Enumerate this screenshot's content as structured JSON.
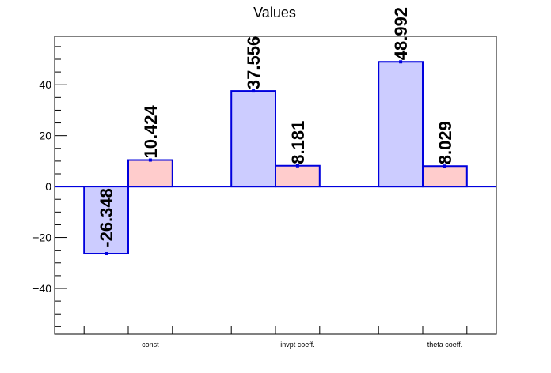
{
  "chart_data": {
    "type": "bar",
    "title": "Values",
    "categories": [
      "const",
      "invpt coeff.",
      "theta coeff."
    ],
    "series": [
      {
        "values": [
          -26.348,
          37.556,
          48.992
        ],
        "errors": [
          0.0,
          0.0,
          0.0
        ],
        "color": "#ccccff"
      },
      {
        "values": [
          10.424,
          8.181,
          8.029
        ],
        "errors": [
          0.6,
          0.5,
          0.5
        ],
        "color": "#ffcccc"
      }
    ],
    "value_labels": [
      [
        "-26.348",
        "37.556",
        "48.992"
      ],
      [
        "10.424",
        "8.181",
        "8.029"
      ]
    ],
    "ylim": [
      -58,
      59
    ],
    "yticks": [
      -40,
      -20,
      0,
      20,
      40
    ],
    "ytick_labels": [
      "−40",
      "−20",
      "0",
      "20",
      "40"
    ],
    "bar_edge_color": "#0000dd",
    "grid": false
  }
}
